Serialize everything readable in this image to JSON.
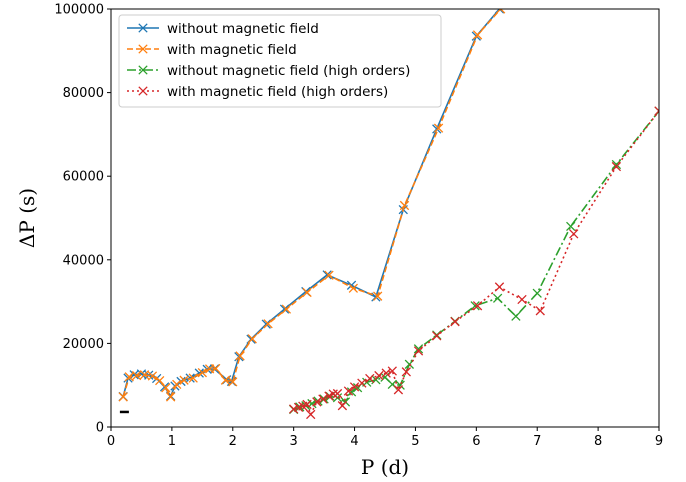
{
  "chart_data": {
    "type": "line",
    "title": "",
    "xlabel": "P (d)",
    "ylabel": "ΔP (s)",
    "xlim": [
      0,
      9
    ],
    "ylim": [
      0,
      100000
    ],
    "xticks": [
      0,
      1,
      2,
      3,
      4,
      5,
      6,
      7,
      8,
      9
    ],
    "yticks": [
      0,
      20000,
      40000,
      60000,
      80000,
      100000
    ],
    "xtick_labels": [
      "0",
      "1",
      "2",
      "3",
      "4",
      "5",
      "6",
      "7",
      "8",
      "9"
    ],
    "ytick_labels": [
      "0",
      "20000",
      "40000",
      "60000",
      "80000",
      "100000"
    ],
    "grid": false,
    "legend_position": "top-left",
    "marker": "x",
    "series": [
      {
        "name": "without magnetic field",
        "color": "#1f77b4",
        "linestyle": "solid",
        "points": [
          [
            0.2,
            7300
          ],
          [
            0.28,
            11700
          ],
          [
            0.38,
            12500
          ],
          [
            0.5,
            12700
          ],
          [
            0.62,
            12400
          ],
          [
            0.75,
            11600
          ],
          [
            0.88,
            9600
          ],
          [
            0.98,
            7400
          ],
          [
            1.05,
            9800
          ],
          [
            1.15,
            10900
          ],
          [
            1.3,
            11700
          ],
          [
            1.45,
            12900
          ],
          [
            1.58,
            13800
          ],
          [
            1.7,
            13900
          ],
          [
            1.9,
            11300
          ],
          [
            1.98,
            10900
          ],
          [
            2.1,
            16800
          ],
          [
            2.3,
            21000
          ],
          [
            2.55,
            24600
          ],
          [
            2.85,
            28200
          ],
          [
            3.2,
            32400
          ],
          [
            3.55,
            36400
          ],
          [
            3.95,
            33900
          ],
          [
            4.35,
            31100
          ],
          [
            4.8,
            52000
          ],
          [
            5.35,
            71300
          ],
          [
            6.0,
            93500
          ],
          [
            6.38,
            100000
          ]
        ]
      },
      {
        "name": "with magnetic field",
        "color": "#ff7f0e",
        "linestyle": "dashed",
        "points": [
          [
            0.2,
            7200
          ],
          [
            0.3,
            12000
          ],
          [
            0.42,
            12300
          ],
          [
            0.55,
            12500
          ],
          [
            0.68,
            12200
          ],
          [
            0.8,
            11100
          ],
          [
            0.9,
            9400
          ],
          [
            0.98,
            7200
          ],
          [
            1.08,
            10200
          ],
          [
            1.2,
            11200
          ],
          [
            1.35,
            11700
          ],
          [
            1.5,
            13000
          ],
          [
            1.62,
            13900
          ],
          [
            1.72,
            14000
          ],
          [
            1.88,
            11200
          ],
          [
            2.0,
            10800
          ],
          [
            2.12,
            17000
          ],
          [
            2.32,
            21100
          ],
          [
            2.58,
            24700
          ],
          [
            2.88,
            28200
          ],
          [
            3.22,
            32200
          ],
          [
            3.58,
            36300
          ],
          [
            3.98,
            33200
          ],
          [
            4.38,
            31300
          ],
          [
            4.82,
            53000
          ],
          [
            5.38,
            71500
          ],
          [
            6.02,
            93800
          ],
          [
            6.4,
            100000
          ]
        ]
      },
      {
        "name": "without magnetic field (high orders)",
        "color": "#2ca02c",
        "linestyle": "dashdot",
        "points": [
          [
            3.0,
            4200
          ],
          [
            3.1,
            4800
          ],
          [
            3.2,
            5100
          ],
          [
            3.3,
            5600
          ],
          [
            3.4,
            6200
          ],
          [
            3.5,
            6700
          ],
          [
            3.6,
            7300
          ],
          [
            3.72,
            7000
          ],
          [
            3.85,
            6000
          ],
          [
            3.95,
            8400
          ],
          [
            4.05,
            9400
          ],
          [
            4.2,
            10700
          ],
          [
            4.35,
            11300
          ],
          [
            4.5,
            11900
          ],
          [
            4.62,
            10200
          ],
          [
            4.75,
            10000
          ],
          [
            4.9,
            15000
          ],
          [
            5.05,
            18700
          ],
          [
            5.35,
            22000
          ],
          [
            5.65,
            25300
          ],
          [
            5.98,
            29000
          ],
          [
            6.35,
            30800
          ],
          [
            6.65,
            26500
          ],
          [
            7.0,
            32000
          ],
          [
            7.55,
            48000
          ],
          [
            8.3,
            62800
          ],
          [
            9.0,
            75600
          ]
        ]
      },
      {
        "name": "with magnetic field (high orders)",
        "color": "#d62728",
        "linestyle": "dotted",
        "points": [
          [
            3.0,
            4300
          ],
          [
            3.08,
            4700
          ],
          [
            3.15,
            5000
          ],
          [
            3.22,
            5400
          ],
          [
            3.28,
            3000
          ],
          [
            3.38,
            6000
          ],
          [
            3.48,
            6700
          ],
          [
            3.58,
            7400
          ],
          [
            3.65,
            7900
          ],
          [
            3.72,
            8000
          ],
          [
            3.8,
            5100
          ],
          [
            3.9,
            8600
          ],
          [
            4.0,
            9600
          ],
          [
            4.12,
            10500
          ],
          [
            4.25,
            11600
          ],
          [
            4.4,
            12300
          ],
          [
            4.52,
            12900
          ],
          [
            4.62,
            13400
          ],
          [
            4.72,
            8900
          ],
          [
            4.85,
            13200
          ],
          [
            5.05,
            18200
          ],
          [
            5.35,
            21800
          ],
          [
            5.65,
            25200
          ],
          [
            6.02,
            29000
          ],
          [
            6.38,
            33500
          ],
          [
            6.75,
            30500
          ],
          [
            7.05,
            27800
          ],
          [
            7.6,
            46200
          ],
          [
            8.3,
            62300
          ],
          [
            9.0,
            75600
          ]
        ]
      }
    ],
    "annotations": [
      {
        "type": "short-bar",
        "x": 0.22,
        "y": 3600,
        "color": "#000000"
      }
    ]
  }
}
